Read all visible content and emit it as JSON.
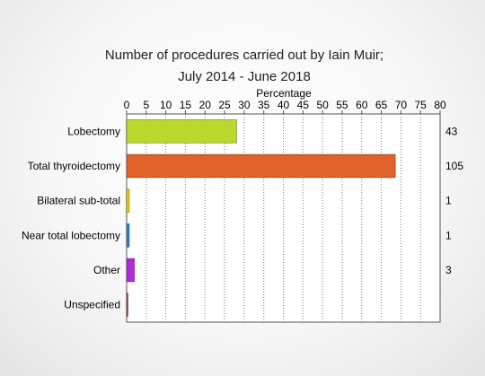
{
  "chart_data": {
    "type": "bar",
    "orientation": "horizontal",
    "title_line1": "Number of procedures carried out by Iain Muir;",
    "title_line2": "July 2014 - June 2018",
    "xlabel": "Percentage",
    "xlim": [
      0,
      80
    ],
    "xticks": [
      0,
      5,
      10,
      15,
      20,
      25,
      30,
      35,
      40,
      45,
      50,
      55,
      60,
      65,
      70,
      75,
      80
    ],
    "categories": [
      "Lobectomy",
      "Total thyroidectomy",
      "Bilateral sub-total",
      "Near total lobectomy",
      "Other",
      "Unspecified"
    ],
    "values": [
      28.1,
      68.6,
      0.7,
      0.7,
      2.0,
      0.3
    ],
    "counts": [
      "43",
      "105",
      "1",
      "1",
      "3",
      ""
    ],
    "colors": [
      "#b9d92c",
      "#e0622a",
      "#e8d400",
      "#2f7fd6",
      "#b22ae0",
      "#c0392b"
    ],
    "grid": true,
    "axis_position": "top"
  }
}
